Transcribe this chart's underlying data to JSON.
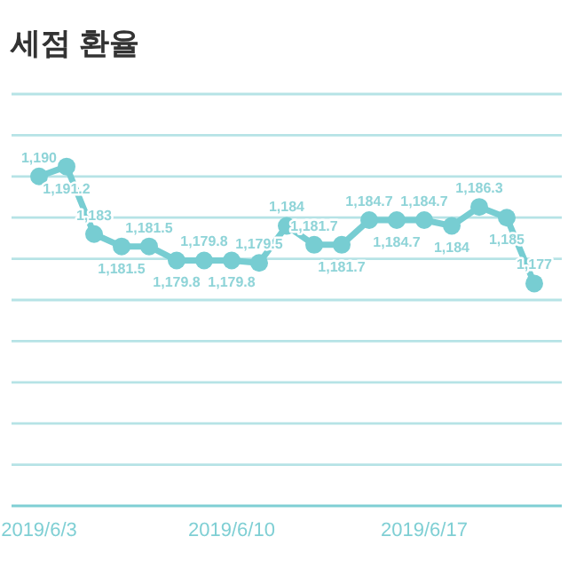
{
  "chart_data": {
    "type": "line",
    "title": "세점 환율",
    "x": [
      "2019-06-03",
      "2019-06-04",
      "2019-06-05",
      "2019-06-06",
      "2019-06-07",
      "2019-06-08",
      "2019-06-09",
      "2019-06-10",
      "2019-06-11",
      "2019-06-12",
      "2019-06-13",
      "2019-06-14",
      "2019-06-15",
      "2019-06-16",
      "2019-06-17",
      "2019-06-18",
      "2019-06-19",
      "2019-06-20",
      "2019-06-21"
    ],
    "series": [
      {
        "color": "#77cdd2",
        "values": [
          1190,
          1191.2,
          1183,
          1181.5,
          1181.5,
          1179.8,
          1179.8,
          1179.8,
          1179.5,
          1184,
          1181.7,
          1181.7,
          1184.7,
          1184.7,
          1184.7,
          1184,
          1186.3,
          1185,
          1177
        ],
        "value_labels": [
          "1,190",
          "1,191.2",
          "1,183",
          "1,181.5",
          "1,181.5",
          "1,179.8",
          "1,179.8",
          "1,179.8",
          "1,179.5",
          "1,184",
          "1,181.7",
          "1,181.7",
          "1,184.7",
          "1,184.7",
          "1,184.7",
          "1,184",
          "1,186.3",
          "1,185",
          "1,177"
        ]
      }
    ],
    "xlim": [
      "2019-06-02",
      "2019-06-22"
    ],
    "xticks": [
      {
        "value": "2019-06-03",
        "label": "2019/6/3"
      },
      {
        "value": "2019-06-10",
        "label": "2019/6/10"
      },
      {
        "value": "2019-06-17",
        "label": "2019/6/17"
      }
    ],
    "ylim": [
      1150,
      1200
    ],
    "yticks": [
      {
        "value": 1150,
        "label": null
      },
      {
        "value": 1155,
        "label": null
      },
      {
        "value": 1160,
        "label": null
      },
      {
        "value": 1165,
        "label": null
      },
      {
        "value": 1170,
        "label": null
      },
      {
        "value": 1175,
        "label": null
      },
      {
        "value": 1180,
        "label": null
      },
      {
        "value": 1185,
        "label": null
      },
      {
        "value": 1190,
        "label": null
      },
      {
        "value": 1195,
        "label": null
      },
      {
        "value": 1200,
        "label": null
      }
    ],
    "grid": "y",
    "marker": "circle",
    "tick_labels": "x"
  }
}
